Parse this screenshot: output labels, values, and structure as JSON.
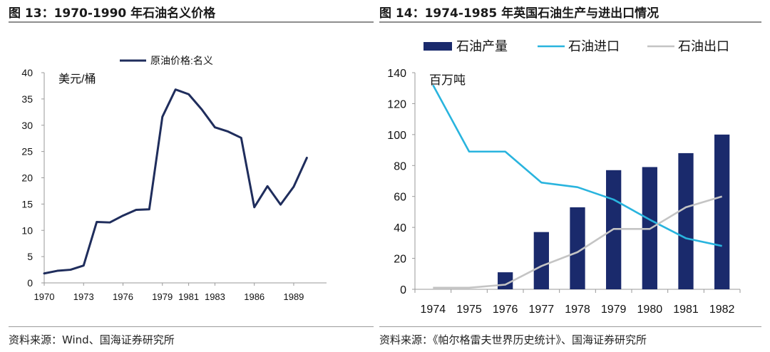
{
  "left_panel": {
    "figure_title": "图 13：1970-1990 年石油名义价格",
    "source": "资料来源：Wind、国海证券研究所"
  },
  "right_panel": {
    "figure_title": "图 14：1974-1985 年英国石油生产与进出口情况",
    "source": "资料来源：《帕尔格雷夫世界历史统计》、国海证券研究所"
  },
  "colors": {
    "price_line": "#1f2d5c",
    "production_bar": "#1a2a6c",
    "import_line": "#29b4de",
    "export_line": "#c4c4c4",
    "axis": "#9a9a9a"
  },
  "chart_data": [
    {
      "type": "line",
      "title": "1970-1990 年石油名义价格",
      "ylabel": "美元/桶",
      "ylim": [
        0,
        40
      ],
      "yticks": [
        0,
        5,
        10,
        15,
        20,
        25,
        30,
        35,
        40
      ],
      "xlim": [
        1970,
        1991.5
      ],
      "xticks": [
        1970,
        1973,
        1976,
        1979,
        1981,
        1983,
        1986,
        1989
      ],
      "xtick_labels": [
        "1970",
        "1973",
        "1976",
        "1979",
        "1981",
        "1983",
        "1986",
        "1989"
      ],
      "series": [
        {
          "name": "原油价格:名义",
          "x": [
            1970,
            1971,
            1972,
            1973,
            1974,
            1975,
            1976,
            1977,
            1978,
            1979,
            1980,
            1981,
            1982,
            1983,
            1984,
            1985,
            1986,
            1987,
            1988,
            1989,
            1990,
            1991
          ],
          "values": [
            1.8,
            2.3,
            2.5,
            3.3,
            11.6,
            11.5,
            12.8,
            13.9,
            14.0,
            31.6,
            36.8,
            35.9,
            33.0,
            29.6,
            28.8,
            27.6,
            14.4,
            18.4,
            14.9,
            18.3,
            23.8,
            null
          ]
        }
      ]
    },
    {
      "type": "bar",
      "title": "1974-1985 年英国石油生产与进出口情况",
      "ylabel": "百万吨",
      "ylim": [
        0,
        140
      ],
      "yticks": [
        0,
        20,
        40,
        60,
        80,
        100,
        120,
        140
      ],
      "categories": [
        "1974",
        "1975",
        "1976",
        "1977",
        "1978",
        "1979",
        "1980",
        "1981",
        "1982"
      ],
      "series": [
        {
          "name": "石油产量",
          "kind": "bar",
          "values": [
            0,
            0,
            11,
            37,
            53,
            77,
            79,
            88,
            100
          ]
        },
        {
          "name": "石油进口",
          "kind": "line",
          "values": [
            132,
            89,
            89,
            69,
            66,
            58,
            45,
            33,
            28
          ]
        },
        {
          "name": "石油出口",
          "kind": "line",
          "values": [
            1,
            1,
            3,
            15,
            24,
            39,
            39,
            53,
            60
          ]
        }
      ]
    }
  ]
}
